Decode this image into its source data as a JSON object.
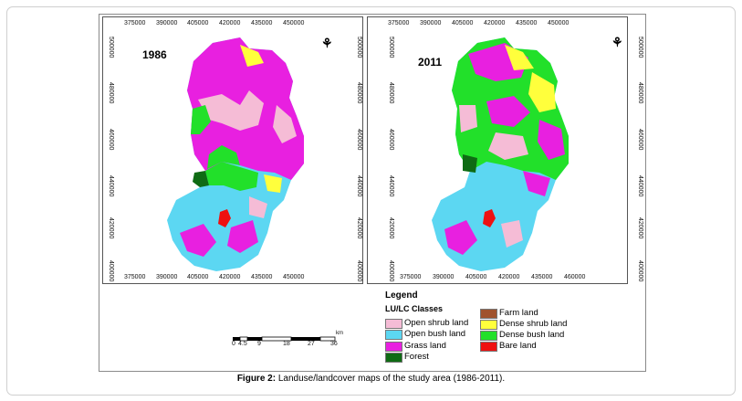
{
  "caption": {
    "label": "Figure 2:",
    "text": "Landuse/landcover maps of the study area (1986-2011)."
  },
  "maps": [
    {
      "year": "1986"
    },
    {
      "year": "2011"
    }
  ],
  "x_ticks": [
    "375000",
    "390000",
    "405000",
    "420000",
    "435000",
    "450000"
  ],
  "x_ticks_bottom_left": [
    "375000",
    "390000",
    "405000",
    "420000",
    "435000",
    "450000"
  ],
  "x_ticks_bottom_right": [
    "375000",
    "390000",
    "405000",
    "420000",
    "435000",
    "460000"
  ],
  "y_ticks": [
    "500000",
    "480000",
    "460000",
    "440000",
    "420000",
    "400000"
  ],
  "north_symbol": "⚘",
  "legend": {
    "title": "Legend",
    "subtitle": "LU/LC Classes",
    "classes": [
      {
        "label": "Open shrub land",
        "color": "#f5bcd6"
      },
      {
        "label": "Open bush land",
        "color": "#5cd7f2"
      },
      {
        "label": "Grass land",
        "color": "#e820e0"
      },
      {
        "label": "Forest",
        "color": "#0f6b14"
      },
      {
        "label": "Farm land",
        "color": "#a0522d"
      },
      {
        "label": "Dense shrub land",
        "color": "#ffff3c"
      },
      {
        "label": "Dense bush land",
        "color": "#22e02a"
      },
      {
        "label": "Bare land",
        "color": "#ee1111"
      }
    ]
  },
  "scale_bar": {
    "unit": "km",
    "labels": [
      "0",
      "4.5",
      "9",
      "18",
      "27",
      "36"
    ]
  }
}
